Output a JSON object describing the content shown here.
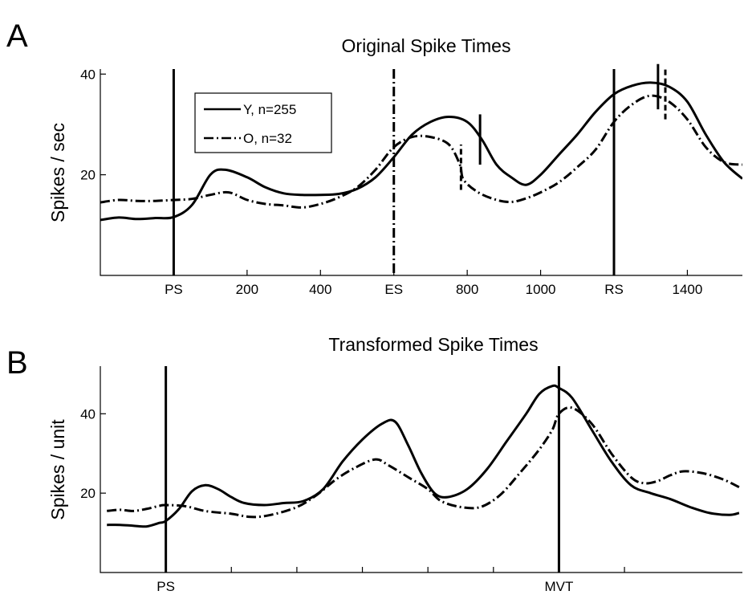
{
  "chart_data": [
    {
      "panel_letter": "A",
      "type": "line",
      "title": "Original Spike Times",
      "ylabel": "Spikes / sec",
      "xlabel": "",
      "xlim": [
        -200,
        1550
      ],
      "ylim": [
        0,
        41
      ],
      "x_ticks": [
        {
          "value": 0,
          "label": "PS"
        },
        {
          "value": 200,
          "label": "200"
        },
        {
          "value": 400,
          "label": "400"
        },
        {
          "value": 600,
          "label": "ES"
        },
        {
          "value": 800,
          "label": "800"
        },
        {
          "value": 1000,
          "label": "1000"
        },
        {
          "value": 1200,
          "label": "RS"
        },
        {
          "value": 1400,
          "label": "1400"
        }
      ],
      "y_ticks": [
        {
          "value": 20,
          "label": "20"
        },
        {
          "value": 40,
          "label": "40"
        }
      ],
      "legend": {
        "position": "top-left",
        "entries": [
          "Y, n=255",
          "O, n=32"
        ]
      },
      "grid": false,
      "vlines": [
        {
          "x": 0,
          "style": "solid",
          "label": "PS"
        },
        {
          "x": 600,
          "style": "dashdot",
          "label": "ES"
        },
        {
          "x": 1200,
          "style": "solid",
          "label": "RS"
        }
      ],
      "markers": [
        {
          "series": "Y, n=255",
          "x": 835,
          "y_range": [
            22,
            32
          ],
          "style": "solid"
        },
        {
          "series": "O, n=32",
          "x": 783,
          "y_range": [
            17,
            26
          ],
          "style": "dashed"
        },
        {
          "series": "Y, n=255",
          "x": 1320,
          "y_range": [
            33,
            42
          ],
          "style": "solid"
        },
        {
          "series": "O, n=32",
          "x": 1340,
          "y_range": [
            31,
            41
          ],
          "style": "dashed"
        }
      ],
      "series": [
        {
          "name": "Y, n=255",
          "style": "solid",
          "x": [
            -200,
            -150,
            -100,
            -50,
            0,
            50,
            100,
            140,
            200,
            250,
            300,
            350,
            400,
            450,
            500,
            550,
            600,
            650,
            700,
            750,
            800,
            840,
            880,
            920,
            960,
            1000,
            1050,
            1100,
            1150,
            1200,
            1250,
            1300,
            1350,
            1400,
            1450,
            1500,
            1550
          ],
          "y": [
            11,
            11.5,
            11.2,
            11.4,
            11.6,
            14,
            20,
            21,
            19.5,
            17.5,
            16.3,
            16,
            16,
            16.2,
            17.2,
            19.5,
            23.5,
            28,
            30.5,
            31.5,
            30.5,
            27,
            22,
            19.5,
            18,
            20,
            24,
            28,
            32.5,
            36,
            37.7,
            38.3,
            37.5,
            34.5,
            28,
            22.5,
            19.2
          ]
        },
        {
          "name": "O, n=32",
          "style": "dashdot",
          "x": [
            -200,
            -150,
            -100,
            -50,
            0,
            50,
            100,
            150,
            200,
            250,
            300,
            350,
            400,
            450,
            500,
            550,
            600,
            650,
            700,
            750,
            780,
            790,
            830,
            880,
            920,
            960,
            1000,
            1050,
            1100,
            1150,
            1200,
            1250,
            1300,
            1350,
            1400,
            1450,
            1500,
            1550
          ],
          "y": [
            14.5,
            15,
            14.8,
            14.8,
            15,
            15.2,
            16,
            16.5,
            15,
            14.2,
            13.9,
            13.5,
            14.2,
            15.5,
            17.5,
            21,
            25.5,
            27.5,
            27.5,
            26,
            22,
            19,
            16.5,
            15,
            14.6,
            15.3,
            16.5,
            18.5,
            21.5,
            25,
            30.5,
            34,
            35.7,
            34.5,
            31,
            25.5,
            22.5,
            22
          ]
        }
      ]
    },
    {
      "panel_letter": "B",
      "type": "line",
      "title": "Transformed Spike Times",
      "ylabel": "Spikes / unit",
      "xlabel": "",
      "xlim": [
        -1,
        8.8
      ],
      "ylim": [
        0,
        52
      ],
      "x_ticks": [
        {
          "value": 0,
          "label": "PS"
        },
        {
          "value": 1,
          "label": ""
        },
        {
          "value": 2,
          "label": ""
        },
        {
          "value": 3,
          "label": ""
        },
        {
          "value": 4,
          "label": ""
        },
        {
          "value": 5,
          "label": ""
        },
        {
          "value": 6,
          "label": "MVT"
        },
        {
          "value": 7,
          "label": ""
        }
      ],
      "y_ticks": [
        {
          "value": 20,
          "label": "20"
        },
        {
          "value": 40,
          "label": "40"
        }
      ],
      "grid": false,
      "vlines": [
        {
          "x": 0,
          "style": "solid",
          "label": "PS"
        },
        {
          "x": 6,
          "style": "solid",
          "label": "MVT"
        }
      ],
      "series": [
        {
          "name": "",
          "style": "solid",
          "x": [
            -0.9,
            -0.7,
            -0.5,
            -0.3,
            -0.1,
            0,
            0.2,
            0.4,
            0.6,
            0.8,
            1.0,
            1.2,
            1.5,
            1.8,
            2.1,
            2.4,
            2.7,
            3.0,
            3.3,
            3.5,
            3.7,
            3.9,
            4.1,
            4.3,
            4.6,
            4.9,
            5.2,
            5.5,
            5.7,
            5.9,
            6.0,
            6.2,
            6.5,
            6.8,
            7.1,
            7.4,
            7.7,
            8.0,
            8.3,
            8.6,
            8.75
          ],
          "y": [
            12,
            12,
            11.8,
            11.6,
            12.5,
            13,
            16,
            20.5,
            22,
            21,
            19,
            17.5,
            17,
            17.5,
            18,
            21,
            28,
            33.5,
            37.5,
            38,
            32,
            25,
            20,
            19,
            21,
            26,
            33,
            40,
            45,
            47,
            46.5,
            44,
            36,
            28,
            22,
            20,
            18.5,
            16.5,
            15,
            14.5,
            15
          ]
        },
        {
          "name": "",
          "style": "dashdot",
          "x": [
            -0.9,
            -0.7,
            -0.5,
            -0.3,
            -0.1,
            0,
            0.3,
            0.6,
            1.0,
            1.3,
            1.6,
            2.0,
            2.3,
            2.6,
            2.9,
            3.2,
            3.4,
            3.7,
            4.0,
            4.2,
            4.5,
            4.8,
            5.1,
            5.4,
            5.7,
            5.9,
            6.0,
            6.2,
            6.5,
            6.8,
            7.1,
            7.3,
            7.5,
            7.7,
            7.9,
            8.2,
            8.5,
            8.75
          ],
          "y": [
            15.5,
            15.8,
            15.5,
            16,
            16.8,
            17,
            16.7,
            15.5,
            14.8,
            14,
            14.5,
            16.5,
            19.5,
            23.5,
            26.5,
            28.5,
            27,
            24,
            21,
            18,
            16.5,
            16.5,
            19.5,
            25,
            31,
            36,
            40,
            41.5,
            37.5,
            30,
            24,
            22.5,
            23,
            24.5,
            25.5,
            25,
            23.5,
            21.5
          ]
        }
      ]
    }
  ]
}
